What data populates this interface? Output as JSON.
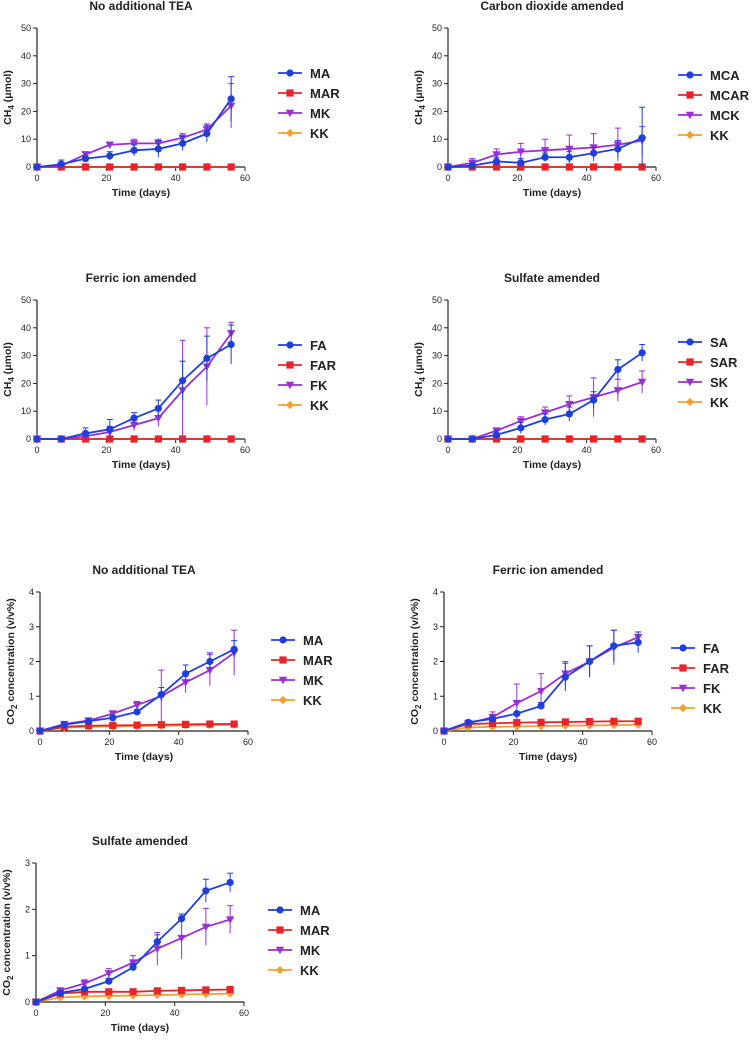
{
  "colors": {
    "blue": "#1f3fdc",
    "red": "#e8242a",
    "purple": "#9b2fd6",
    "orange": "#f0a030",
    "axis": "#222222"
  },
  "chart_data": [
    {
      "id": "p1",
      "type": "line",
      "title": "No additional TEA",
      "xlabel": "Time (days)",
      "ylabel_main": "CH",
      "ylabel_sub": "4",
      "ylabel_tail": " (μmol)",
      "xlim": [
        0,
        60
      ],
      "ylim": [
        0,
        50
      ],
      "xticks": [
        "0",
        "20",
        "40",
        "60"
      ],
      "yticks": [
        "0",
        "10",
        "20",
        "30",
        "40",
        "50"
      ],
      "x": [
        0,
        7,
        14,
        21,
        28,
        35,
        42,
        49,
        56
      ],
      "series": [
        {
          "name": "MA",
          "color": "blue",
          "marker": "circle",
          "values": [
            0,
            1,
            3,
            4,
            6,
            6.5,
            8.5,
            12,
            24.5
          ],
          "err": [
            0,
            1.5,
            1,
            1.5,
            2,
            3,
            2.5,
            3,
            8
          ]
        },
        {
          "name": "MAR",
          "color": "red",
          "marker": "square",
          "values": [
            0,
            0,
            0,
            0,
            0,
            0,
            0,
            0,
            0
          ],
          "err": [
            0,
            0,
            0,
            0,
            0,
            0,
            0,
            0,
            0
          ]
        },
        {
          "name": "MK",
          "color": "purple",
          "marker": "triangle",
          "values": [
            0,
            0.5,
            4.5,
            8,
            8.5,
            8.5,
            10.5,
            13.5,
            22
          ],
          "err": [
            0,
            0.5,
            1,
            1,
            1.5,
            1.5,
            1.5,
            2,
            8
          ]
        },
        {
          "name": "KK",
          "color": "orange",
          "marker": "diamond",
          "values": [
            0,
            0,
            0,
            0,
            0,
            0,
            0,
            0,
            0
          ],
          "err": [
            0,
            0,
            0,
            0,
            0,
            0,
            0,
            0,
            0
          ]
        }
      ]
    },
    {
      "id": "p2",
      "type": "line",
      "title": "Carbon dioxide amended",
      "xlabel": "Time (days)",
      "ylabel_main": "CH",
      "ylabel_sub": "4",
      "ylabel_tail": " (μmol)",
      "xlim": [
        0,
        60
      ],
      "ylim": [
        0,
        50
      ],
      "xticks": [
        "0",
        "20",
        "40",
        "60"
      ],
      "yticks": [
        "0",
        "10",
        "20",
        "30",
        "40",
        "50"
      ],
      "x": [
        0,
        7,
        14,
        21,
        28,
        35,
        42,
        49,
        56
      ],
      "series": [
        {
          "name": "MCA",
          "color": "blue",
          "marker": "circle",
          "values": [
            0,
            0.5,
            2,
            1.5,
            3.5,
            3.5,
            5,
            6.5,
            10.5
          ],
          "err": [
            0,
            0.5,
            1.5,
            1.5,
            1.5,
            2,
            2,
            3,
            11
          ]
        },
        {
          "name": "MCAR",
          "color": "red",
          "marker": "square",
          "values": [
            0,
            0,
            0,
            0,
            0,
            0,
            0,
            0,
            0
          ],
          "err": [
            0,
            0,
            0,
            0,
            0,
            0,
            0,
            0,
            0
          ]
        },
        {
          "name": "MCK",
          "color": "purple",
          "marker": "triangle",
          "values": [
            0,
            1.5,
            4.5,
            5.5,
            6,
            6.5,
            7,
            8,
            9.5
          ],
          "err": [
            0,
            1.5,
            2,
            3,
            4,
            5,
            5,
            6,
            5
          ]
        },
        {
          "name": "KK",
          "color": "orange",
          "marker": "diamond",
          "values": [
            0,
            0,
            0,
            0,
            0,
            0,
            0,
            0,
            0
          ],
          "err": [
            0,
            0,
            0,
            0,
            0,
            0,
            0,
            0,
            0
          ]
        }
      ]
    },
    {
      "id": "p3",
      "type": "line",
      "title": "Ferric ion amended",
      "xlabel": "Time (days)",
      "ylabel_main": "CH",
      "ylabel_sub": "4",
      "ylabel_tail": " (μmol)",
      "xlim": [
        0,
        60
      ],
      "ylim": [
        0,
        50
      ],
      "xticks": [
        "0",
        "20",
        "40",
        "60"
      ],
      "yticks": [
        "0",
        "10",
        "20",
        "30",
        "40",
        "50"
      ],
      "x": [
        0,
        7,
        14,
        21,
        28,
        35,
        42,
        49,
        56
      ],
      "series": [
        {
          "name": "FA",
          "color": "blue",
          "marker": "circle",
          "values": [
            0,
            0,
            2,
            3.5,
            7.5,
            11,
            21,
            29,
            34
          ],
          "err": [
            0,
            0.5,
            2,
            3.5,
            2,
            3,
            7,
            8,
            7
          ]
        },
        {
          "name": "FAR",
          "color": "red",
          "marker": "square",
          "values": [
            0,
            0,
            0,
            0,
            0,
            0,
            0,
            0,
            0
          ],
          "err": [
            0,
            0,
            0,
            0,
            0,
            0,
            0,
            0,
            0
          ]
        },
        {
          "name": "FK",
          "color": "purple",
          "marker": "triangle",
          "values": [
            0,
            0,
            1,
            2.5,
            5,
            7.5,
            17.5,
            26,
            38
          ],
          "err": [
            0,
            0.5,
            1,
            2,
            2,
            3,
            18,
            14,
            4
          ]
        },
        {
          "name": "KK",
          "color": "orange",
          "marker": "diamond",
          "values": [
            0,
            0,
            0,
            0,
            0,
            0,
            0,
            0,
            0
          ],
          "err": [
            0,
            0,
            0,
            0,
            0,
            0,
            0,
            0,
            0
          ]
        }
      ]
    },
    {
      "id": "p4",
      "type": "line",
      "title": "Sulfate amended",
      "xlabel": "Time (days)",
      "ylabel_main": "CH",
      "ylabel_sub": "4",
      "ylabel_tail": " (μmol)",
      "xlim": [
        0,
        60
      ],
      "ylim": [
        0,
        50
      ],
      "xticks": [
        "0",
        "20",
        "40",
        "60"
      ],
      "yticks": [
        "0",
        "10",
        "20",
        "30",
        "40",
        "50"
      ],
      "x": [
        0,
        7,
        14,
        21,
        28,
        35,
        42,
        49,
        56
      ],
      "series": [
        {
          "name": "SA",
          "color": "blue",
          "marker": "circle",
          "values": [
            0,
            0,
            1.5,
            4,
            7,
            9,
            14,
            25,
            31
          ],
          "err": [
            0,
            0.5,
            1.5,
            2,
            2,
            2.5,
            3,
            3.5,
            3
          ]
        },
        {
          "name": "SAR",
          "color": "red",
          "marker": "square",
          "values": [
            0,
            0,
            0,
            0,
            0,
            0,
            0,
            0,
            0
          ],
          "err": [
            0,
            0,
            0,
            0,
            0,
            0,
            0,
            0,
            0
          ]
        },
        {
          "name": "SK",
          "color": "purple",
          "marker": "triangle",
          "values": [
            0,
            0,
            3,
            6.5,
            9.5,
            12.5,
            15,
            17.5,
            20.5
          ],
          "err": [
            0,
            0.5,
            1,
            1.5,
            2,
            3,
            7,
            4,
            4
          ]
        },
        {
          "name": "KK",
          "color": "orange",
          "marker": "diamond",
          "values": [
            0,
            0,
            0,
            0,
            0,
            0,
            0,
            0,
            0
          ],
          "err": [
            0,
            0,
            0,
            0,
            0,
            0,
            0,
            0,
            0
          ]
        }
      ]
    },
    {
      "id": "p5",
      "type": "line",
      "title": "No additional TEA",
      "xlabel": "Time (days)",
      "ylabel_main": "CO",
      "ylabel_sub": "2",
      "ylabel_tail": " concentration (v/v%)",
      "xlim": [
        0,
        60
      ],
      "ylim": [
        0,
        4
      ],
      "xticks": [
        "0",
        "20",
        "40",
        "60"
      ],
      "yticks": [
        "0",
        "1",
        "2",
        "3",
        "4"
      ],
      "x": [
        0,
        7,
        14,
        21,
        28,
        35,
        42,
        49,
        56
      ],
      "series": [
        {
          "name": "MA",
          "color": "blue",
          "marker": "circle",
          "values": [
            0,
            0.18,
            0.28,
            0.38,
            0.55,
            1.05,
            1.65,
            2.0,
            2.35
          ],
          "err": [
            0,
            0.03,
            0.04,
            0.05,
            0.06,
            0.2,
            0.25,
            0.25,
            0.25
          ]
        },
        {
          "name": "MAR",
          "color": "red",
          "marker": "square",
          "values": [
            0,
            0.12,
            0.15,
            0.16,
            0.17,
            0.18,
            0.19,
            0.2,
            0.2
          ],
          "err": [
            0,
            0.02,
            0.02,
            0.02,
            0.02,
            0.02,
            0.02,
            0.02,
            0.02
          ]
        },
        {
          "name": "MK",
          "color": "purple",
          "marker": "triangle",
          "values": [
            0,
            0.2,
            0.3,
            0.5,
            0.75,
            1.0,
            1.4,
            1.75,
            2.25
          ],
          "err": [
            0,
            0.03,
            0.05,
            0.08,
            0.1,
            0.75,
            0.3,
            0.45,
            0.65
          ]
        },
        {
          "name": "KK",
          "color": "orange",
          "marker": "diamond",
          "values": [
            0,
            0.1,
            0.12,
            0.13,
            0.14,
            0.15,
            0.16,
            0.17,
            0.18
          ],
          "err": [
            0,
            0.01,
            0.01,
            0.01,
            0.01,
            0.01,
            0.01,
            0.01,
            0.01
          ]
        }
      ]
    },
    {
      "id": "p6",
      "type": "line",
      "title": "Ferric ion amended",
      "xlabel": "Time (days)",
      "ylabel_main": "CO",
      "ylabel_sub": "2",
      "ylabel_tail": " concentration (v/v%)",
      "xlim": [
        0,
        60
      ],
      "ylim": [
        0,
        4
      ],
      "xticks": [
        "0",
        "20",
        "40",
        "60"
      ],
      "yticks": [
        "0",
        "1",
        "2",
        "3",
        "4"
      ],
      "x": [
        0,
        7,
        14,
        21,
        28,
        35,
        42,
        49,
        56
      ],
      "series": [
        {
          "name": "FA",
          "color": "blue",
          "marker": "circle",
          "values": [
            0,
            0.25,
            0.35,
            0.5,
            0.72,
            1.55,
            2.0,
            2.45,
            2.55
          ],
          "err": [
            0,
            0.03,
            0.05,
            0.05,
            0.1,
            0.4,
            0.45,
            0.45,
            0.3
          ]
        },
        {
          "name": "FAR",
          "color": "red",
          "marker": "square",
          "values": [
            0,
            0.2,
            0.22,
            0.24,
            0.25,
            0.26,
            0.27,
            0.28,
            0.28
          ],
          "err": [
            0,
            0.02,
            0.02,
            0.02,
            0.02,
            0.02,
            0.02,
            0.02,
            0.02
          ]
        },
        {
          "name": "FK",
          "color": "purple",
          "marker": "triangle",
          "values": [
            0,
            0.22,
            0.4,
            0.8,
            1.15,
            1.65,
            2.0,
            2.4,
            2.7
          ],
          "err": [
            0,
            0.05,
            0.15,
            0.55,
            0.5,
            0.35,
            0.45,
            0.5,
            0.15
          ]
        },
        {
          "name": "KK",
          "color": "orange",
          "marker": "diamond",
          "values": [
            0,
            0.1,
            0.12,
            0.13,
            0.14,
            0.15,
            0.16,
            0.17,
            0.18
          ],
          "err": [
            0,
            0.01,
            0.01,
            0.01,
            0.01,
            0.01,
            0.01,
            0.01,
            0.01
          ]
        }
      ]
    },
    {
      "id": "p7",
      "type": "line",
      "title": "Sulfate amended",
      "xlabel": "Time (days)",
      "ylabel_main": "CO",
      "ylabel_sub": "2",
      "ylabel_tail": " concentration (v/v%)",
      "xlim": [
        0,
        60
      ],
      "ylim": [
        0,
        3
      ],
      "xticks": [
        "0",
        "20",
        "40",
        "60"
      ],
      "yticks": [
        "0",
        "1",
        "2",
        "3"
      ],
      "x": [
        0,
        7,
        14,
        21,
        28,
        35,
        42,
        49,
        56
      ],
      "series": [
        {
          "name": "MA",
          "color": "blue",
          "marker": "circle",
          "values": [
            0,
            0.2,
            0.28,
            0.45,
            0.75,
            1.3,
            1.8,
            2.4,
            2.58
          ],
          "err": [
            0,
            0.03,
            0.04,
            0.06,
            0.08,
            0.15,
            0.1,
            0.25,
            0.2
          ]
        },
        {
          "name": "MAR",
          "color": "red",
          "marker": "square",
          "values": [
            0,
            0.18,
            0.22,
            0.22,
            0.22,
            0.24,
            0.25,
            0.26,
            0.27
          ],
          "err": [
            0,
            0.02,
            0.02,
            0.02,
            0.02,
            0.02,
            0.02,
            0.02,
            0.02
          ]
        },
        {
          "name": "MK",
          "color": "purple",
          "marker": "triangle",
          "values": [
            0,
            0.25,
            0.4,
            0.62,
            0.85,
            1.15,
            1.38,
            1.62,
            1.78
          ],
          "err": [
            0,
            0.05,
            0.08,
            0.1,
            0.15,
            0.35,
            0.45,
            0.4,
            0.3
          ]
        },
        {
          "name": "KK",
          "color": "orange",
          "marker": "diamond",
          "values": [
            0,
            0.1,
            0.12,
            0.13,
            0.14,
            0.15,
            0.16,
            0.17,
            0.18
          ],
          "err": [
            0,
            0.01,
            0.01,
            0.01,
            0.01,
            0.01,
            0.01,
            0.01,
            0.01
          ]
        }
      ]
    }
  ]
}
